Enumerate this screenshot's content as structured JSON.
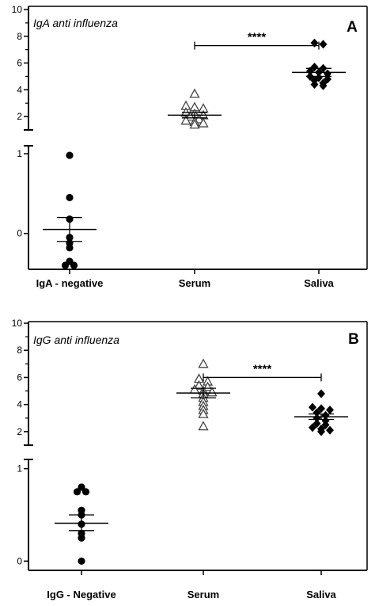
{
  "chart_data": [
    {
      "type": "scatter",
      "panel_label": "A",
      "title": "IgA anti influenza",
      "categories": [
        "IgA - negative",
        "Serum",
        "Saliva"
      ],
      "y_upper_range": [
        1,
        10
      ],
      "y_lower_range": [
        -0.45,
        1.1
      ],
      "y_upper_ticks": [
        "2",
        "4",
        "6",
        "8",
        "10"
      ],
      "y_lower_ticks": [
        "0",
        "1"
      ],
      "series": [
        {
          "category": "IgA - negative",
          "marker": "filled-circle",
          "values": [
            0.98,
            0.45,
            0.18,
            -0.05,
            -0.12,
            -0.18,
            -0.35,
            -0.4,
            -0.4
          ],
          "mean": 0.05,
          "sem_low": -0.1,
          "sem_high": 0.2
        },
        {
          "category": "Serum",
          "marker": "open-triangle",
          "values": [
            3.7,
            2.8,
            2.7,
            2.6,
            2.3,
            2.2,
            2.1,
            2.0,
            1.8,
            1.7,
            1.6,
            1.5,
            1.4
          ],
          "mean": 2.1,
          "sem_low": 1.9,
          "sem_high": 2.3
        },
        {
          "category": "Saliva",
          "marker": "filled-diamond",
          "values": [
            7.5,
            7.4,
            5.7,
            5.6,
            5.4,
            5.3,
            5.2,
            5.0,
            4.9,
            4.8,
            4.7,
            4.5,
            4.4,
            4.3
          ],
          "mean": 5.3,
          "sem_low": 5.0,
          "sem_high": 5.6
        }
      ],
      "significance": {
        "from": "Serum",
        "to": "Saliva",
        "label": "****",
        "y": 7.3
      }
    },
    {
      "type": "scatter",
      "panel_label": "B",
      "title": "IgG anti influenza",
      "categories": [
        "IgG - Negative",
        "Serum",
        "Saliva"
      ],
      "y_upper_range": [
        1,
        10
      ],
      "y_lower_range": [
        -0.1,
        1.1
      ],
      "y_upper_ticks": [
        "2",
        "4",
        "6",
        "8",
        "10"
      ],
      "y_lower_ticks": [
        "0",
        "1"
      ],
      "series": [
        {
          "category": "IgG - Negative",
          "marker": "filled-circle",
          "values": [
            0.8,
            0.75,
            0.75,
            0.55,
            0.5,
            0.4,
            0.3,
            0.25,
            0.0
          ],
          "mean": 0.41,
          "sem_low": 0.33,
          "sem_high": 0.5
        },
        {
          "category": "Serum",
          "marker": "open-triangle",
          "values": [
            7.0,
            5.9,
            5.7,
            5.4,
            5.3,
            5.1,
            5.0,
            4.9,
            4.8,
            4.5,
            4.2,
            3.9,
            3.6,
            3.3,
            2.4
          ],
          "mean": 4.85,
          "sem_low": 4.5,
          "sem_high": 5.2
        },
        {
          "category": "Saliva",
          "marker": "filled-diamond",
          "values": [
            4.8,
            3.8,
            3.7,
            3.6,
            3.4,
            3.2,
            3.0,
            2.8,
            2.6,
            2.5,
            2.3,
            2.2,
            2.1,
            2.0
          ],
          "mean": 3.1,
          "sem_low": 2.9,
          "sem_high": 3.3
        }
      ],
      "significance": {
        "from": "Serum",
        "to": "Saliva",
        "label": "****",
        "y": 6.0
      }
    }
  ]
}
